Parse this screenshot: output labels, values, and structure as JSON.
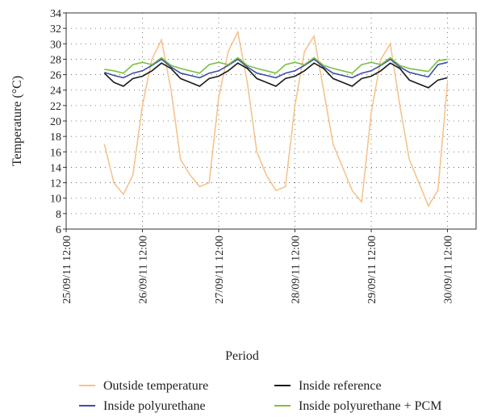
{
  "chart_data": {
    "type": "line",
    "xlabel": "Period",
    "ylabel": "Temperature (°C)",
    "x": [
      "26/09/11 00:00",
      "26/09/11 03:00",
      "26/09/11 06:00",
      "26/09/11 09:00",
      "26/09/11 12:00",
      "26/09/11 15:00",
      "26/09/11 18:00",
      "26/09/11 21:00",
      "27/09/11 00:00",
      "27/09/11 03:00",
      "27/09/11 06:00",
      "27/09/11 09:00",
      "27/09/11 12:00",
      "27/09/11 15:00",
      "27/09/11 18:00",
      "27/09/11 21:00",
      "28/09/11 00:00",
      "28/09/11 03:00",
      "28/09/11 06:00",
      "28/09/11 09:00",
      "28/09/11 12:00",
      "28/09/11 15:00",
      "28/09/11 18:00",
      "28/09/11 21:00",
      "29/09/11 00:00",
      "29/09/11 03:00",
      "29/09/11 06:00",
      "29/09/11 09:00",
      "29/09/11 12:00",
      "29/09/11 15:00",
      "29/09/11 18:00",
      "29/09/11 21:00",
      "30/09/11 00:00",
      "30/09/11 03:00",
      "30/09/11 06:00",
      "30/09/11 09:00",
      "30/09/11 12:00"
    ],
    "series": [
      {
        "name": "Outside temperature",
        "color": "#f6c38e",
        "values": [
          17,
          12,
          10.5,
          13,
          22,
          28,
          30.5,
          24,
          15,
          13,
          11.5,
          12,
          23,
          29,
          31.5,
          25,
          16,
          13,
          11,
          11.5,
          22,
          29,
          31,
          24,
          17,
          14,
          11,
          9.5,
          21,
          28,
          30,
          22,
          15,
          12,
          9,
          11,
          25
        ]
      },
      {
        "name": "Inside reference",
        "color": "#1a1a1a",
        "values": [
          26.2,
          25,
          24.5,
          25.5,
          25.8,
          26.5,
          27.5,
          26.8,
          25.5,
          25,
          24.5,
          25.5,
          25.8,
          26.5,
          27.5,
          26.8,
          25.5,
          25,
          24.5,
          25.5,
          25.8,
          26.5,
          27.5,
          26.8,
          25.5,
          25,
          24.5,
          25.5,
          25.8,
          26.5,
          27.5,
          26.8,
          25.3,
          24.8,
          24.3,
          25.3,
          25.6
        ]
      },
      {
        "name": "Inside polyurethane",
        "color": "#3b4fa3",
        "values": [
          26.3,
          25.9,
          25.6,
          26.2,
          26.5,
          27.2,
          28,
          27,
          26.2,
          25.9,
          25.6,
          26.2,
          26.5,
          27.2,
          28,
          27,
          26.2,
          25.9,
          25.6,
          26.2,
          26.5,
          27.2,
          28,
          27,
          26.2,
          25.9,
          25.6,
          26.2,
          26.5,
          27.2,
          28,
          27,
          26.3,
          26,
          25.7,
          27.3,
          27.6
        ]
      },
      {
        "name": "Inside polyurethane + PCM",
        "color": "#7bc142",
        "values": [
          26.7,
          26.5,
          26.2,
          27.3,
          27.6,
          27.3,
          28.2,
          27.2,
          26.8,
          26.5,
          26.2,
          27.3,
          27.6,
          27.3,
          28.2,
          27.2,
          26.8,
          26.5,
          26.2,
          27.3,
          27.6,
          27.3,
          28.2,
          27.2,
          26.8,
          26.5,
          26.2,
          27.3,
          27.6,
          27.3,
          28.2,
          27.2,
          26.8,
          26.6,
          26.4,
          27.8,
          28
        ]
      }
    ],
    "xlim": [
      "25/09/11 12:00",
      "30/09/11 21:00"
    ],
    "xticks": [
      "25/09/11 12:00",
      "26/09/11 12:00",
      "27/09/11 12:00",
      "28/09/11 12:00",
      "29/09/11 12:00",
      "30/09/11 12:00"
    ],
    "ylim": [
      6,
      34
    ],
    "yticks": [
      6,
      8,
      10,
      12,
      14,
      16,
      18,
      20,
      22,
      24,
      26,
      28,
      30,
      32,
      34
    ],
    "grid": true
  }
}
